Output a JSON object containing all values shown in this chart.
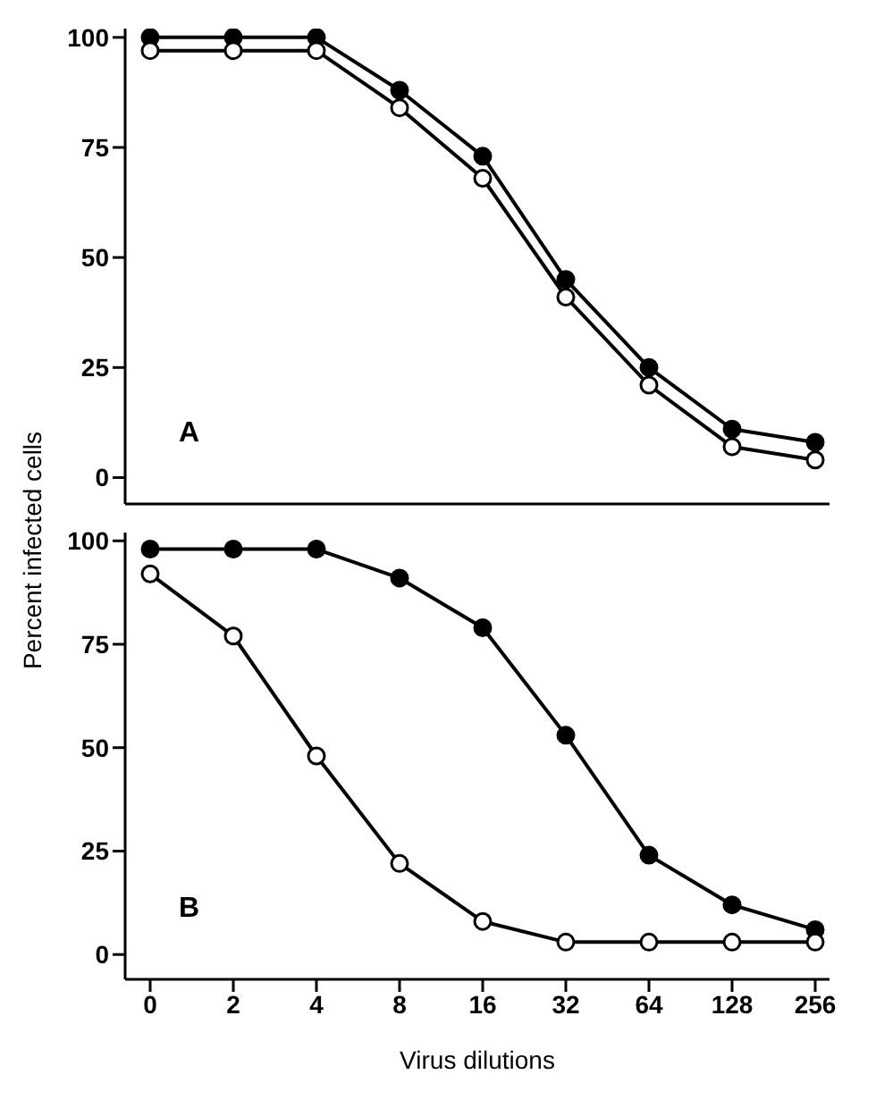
{
  "chart_data": [
    {
      "type": "line",
      "categories": [
        "0",
        "2",
        "4",
        "8",
        "16",
        "32",
        "64",
        "128",
        "256"
      ],
      "annotations": [
        "A"
      ],
      "ylim": [
        -6,
        102
      ],
      "yticks": [
        0,
        25,
        50,
        75,
        100
      ],
      "tick_labels": "y",
      "marker": "circle",
      "line_style": "solid",
      "grid": false,
      "legend": false,
      "series": [
        {
          "color": "#000000",
          "values": [
            100,
            100,
            100,
            88,
            73,
            45,
            25,
            11,
            8
          ]
        },
        {
          "color": "#000000",
          "values": [
            97,
            97,
            97,
            84,
            68,
            41,
            21,
            7,
            4
          ]
        }
      ]
    },
    {
      "type": "line",
      "categories": [
        "0",
        "2",
        "4",
        "8",
        "16",
        "32",
        "64",
        "128",
        "256"
      ],
      "annotations": [
        "B"
      ],
      "xlabel": "Virus dilutions",
      "ylabel": "Percent infected cells",
      "ylim": [
        -6,
        102
      ],
      "yticks": [
        0,
        25,
        50,
        75,
        100
      ],
      "marker": "circle",
      "line_style": "solid",
      "grid": false,
      "legend": false,
      "series": [
        {
          "color": "#000000",
          "values": [
            98,
            98,
            98,
            91,
            79,
            53,
            24,
            12,
            6
          ]
        },
        {
          "color": "#000000",
          "values": [
            92,
            77,
            48,
            22,
            8,
            3,
            3,
            3,
            3
          ]
        }
      ]
    }
  ]
}
